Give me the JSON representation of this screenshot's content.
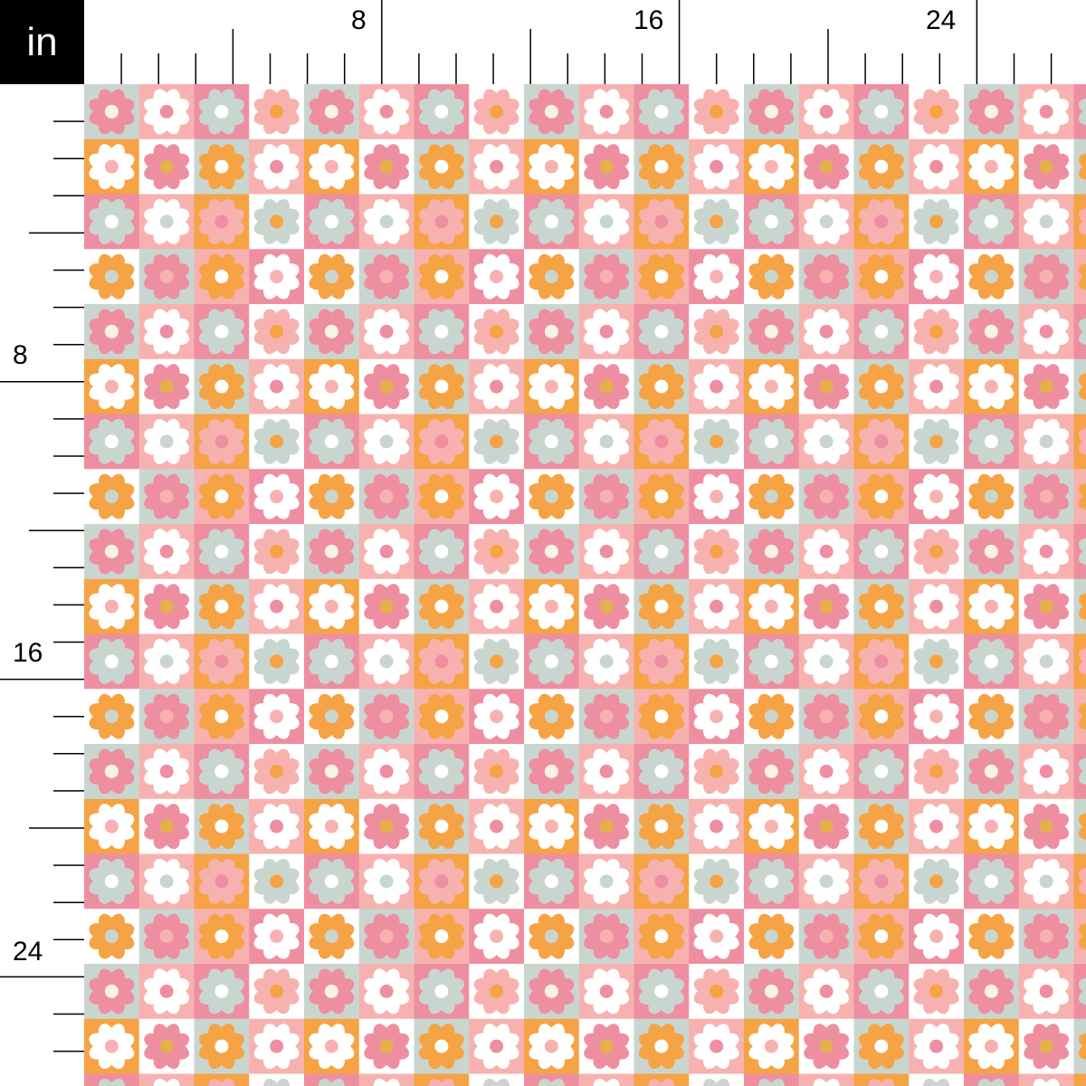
{
  "ruler": {
    "unit_label": "in",
    "top_labels": [
      "8",
      "16",
      "24"
    ],
    "left_labels": [
      "8",
      "16",
      "24"
    ],
    "label_every_inches": 8,
    "major_every_inches": 4,
    "tick_color": "#000000"
  },
  "palette": {
    "G": "#c9d6d0",
    "P": "#f7b2b0",
    "D": "#ee8fa1",
    "W": "#ffffff",
    "O": "#f5a344",
    "C": "#f8f4e2",
    "M": "#e4b04a"
  },
  "pattern": {
    "description_keys": "background,petal,center",
    "repeat": [
      [
        "GDC",
        "PWD",
        "DGW",
        "WPO"
      ],
      [
        "OWP",
        "WDM",
        "GOW",
        "PWD"
      ],
      [
        "DGW",
        "PWG",
        "OPD",
        "WGO"
      ],
      [
        "WOG",
        "GDP",
        "POW",
        "DWP"
      ]
    ]
  }
}
